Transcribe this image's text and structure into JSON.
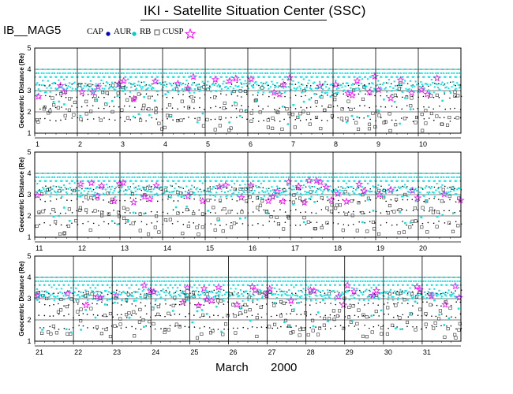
{
  "header": {
    "title": "IKI - Satellite Situation Center (SSC)",
    "satellite": "IB__MAG5"
  },
  "legend": [
    {
      "label": "CAP",
      "symbol": "dot",
      "color": "#0000cc"
    },
    {
      "label": "AUR",
      "symbol": "dot",
      "color": "#00cccc"
    },
    {
      "label": "RB",
      "symbol": "square",
      "color": "#555555"
    },
    {
      "label": "CUSP",
      "symbol": "star",
      "color": "#ff00ff"
    }
  ],
  "footer": {
    "month": "March",
    "year": "2000"
  },
  "colors": {
    "rb": "#00e5e5",
    "cusp": "#ff00ff",
    "cap": "#0000cc",
    "square": "#333333"
  },
  "chart_data": {
    "type": "scatter",
    "ylabel": "Geocentric Distance (Re)",
    "ylim": [
      1,
      5
    ],
    "yticks": [
      1,
      2,
      3,
      4,
      5
    ],
    "panels": [
      {
        "days": [
          1,
          2,
          3,
          4,
          5,
          6,
          7,
          8,
          9,
          10
        ],
        "day_labels": [
          "1",
          "2",
          "3",
          "4",
          "5",
          "6",
          "7",
          "8",
          "9",
          "10"
        ]
      },
      {
        "days": [
          11,
          12,
          13,
          14,
          15,
          16,
          17,
          18,
          19,
          20
        ],
        "day_labels": [
          "11",
          "12",
          "13",
          "14",
          "15",
          "16",
          "17",
          "18",
          "19",
          "20"
        ]
      },
      {
        "days": [
          21,
          22,
          23,
          24,
          25,
          26,
          27,
          28,
          29,
          30,
          31
        ],
        "day_labels": [
          "21",
          "22",
          "23",
          "24",
          "25",
          "26",
          "27",
          "28",
          "29",
          "30",
          "31"
        ]
      }
    ],
    "orbits_per_day": 8,
    "apogee_re": 4.0,
    "perigee_re": 1.1
  }
}
